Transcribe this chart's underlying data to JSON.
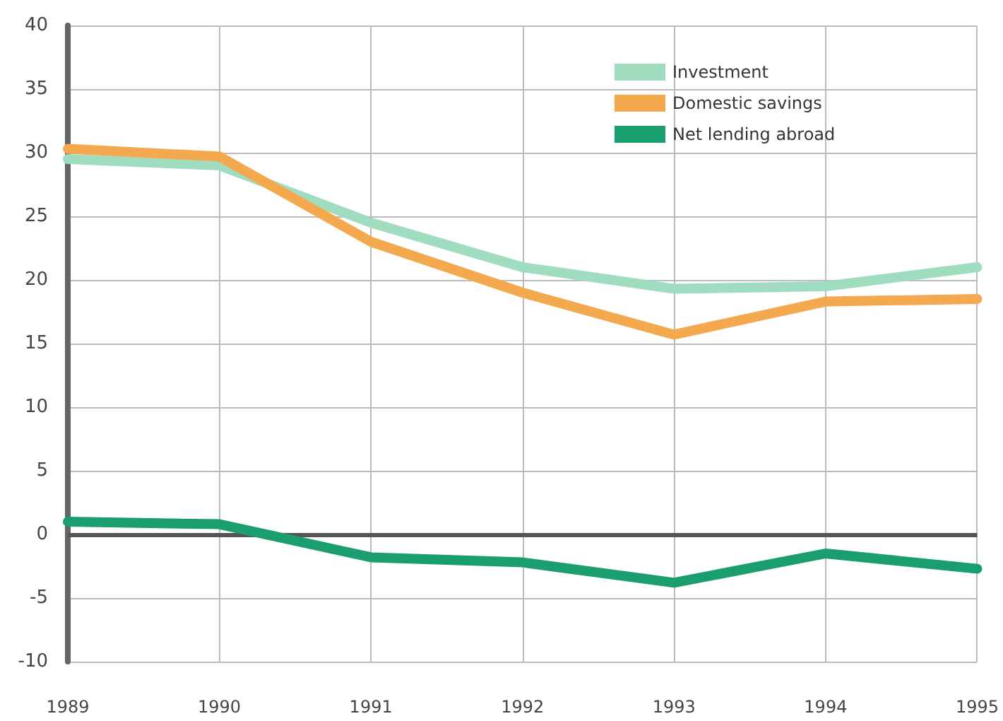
{
  "chart_data": {
    "type": "line",
    "categories": [
      "1989",
      "1990",
      "1991",
      "1992",
      "1993",
      "1994",
      "1995"
    ],
    "series": [
      {
        "name": "Investment",
        "color": "#9fdcc0",
        "values": [
          29.5,
          29,
          24.5,
          21,
          19.3,
          19.5,
          21
        ]
      },
      {
        "name": "Domestic savings",
        "color": "#f5a94e",
        "values": [
          30.3,
          29.7,
          23,
          19,
          15.7,
          18.3,
          18.5
        ]
      },
      {
        "name": "Net lending abroad",
        "color": "#1a9e6e",
        "values": [
          1,
          0.8,
          -1.8,
          -2.2,
          -3.8,
          -1.5,
          -2.7
        ]
      }
    ],
    "ylim": [
      -10,
      40
    ],
    "yticks": [
      -10,
      -5,
      0,
      5,
      10,
      15,
      20,
      25,
      30,
      35,
      40
    ],
    "ref_lines": [
      {
        "axis": "y",
        "value": 0,
        "color": "#555555"
      }
    ],
    "grid": true,
    "legend": "top right",
    "line_style": "solid"
  }
}
